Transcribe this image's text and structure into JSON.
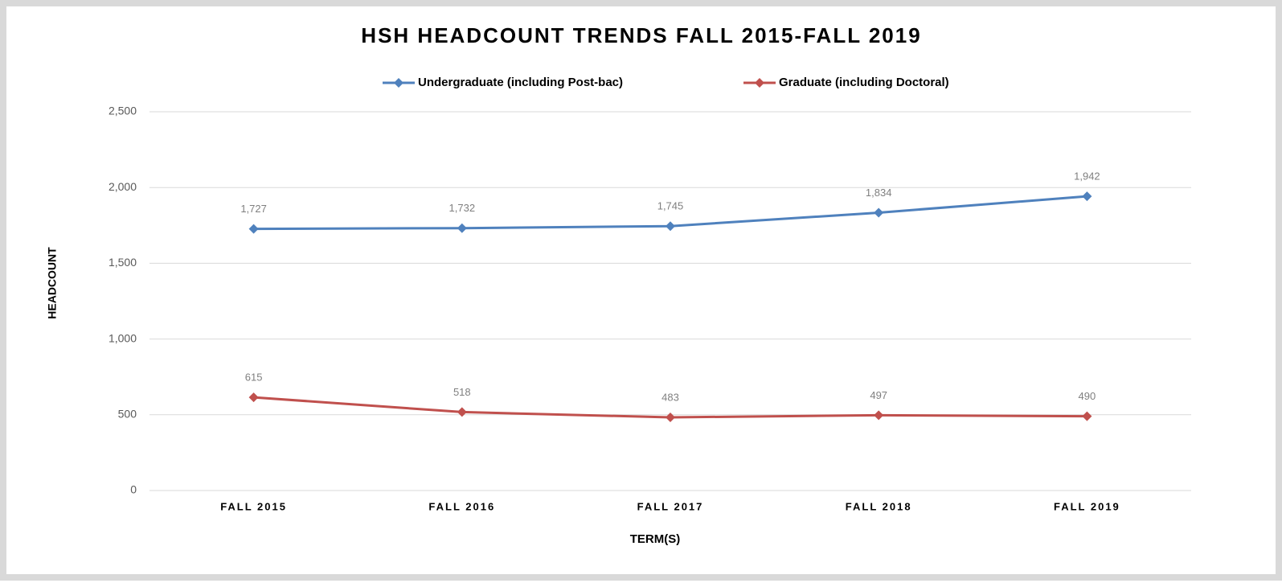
{
  "chart_data": {
    "type": "line",
    "title": "HSH HEADCOUNT TRENDS FALL 2015-FALL 2019",
    "x_label": "TERM(S)",
    "y_label": "HEADCOUNT",
    "categories": [
      "FALL 2015",
      "FALL 2016",
      "FALL 2017",
      "FALL 2018",
      "FALL 2019"
    ],
    "series": [
      {
        "name": "Undergraduate (including Post-bac)",
        "color": "#4f81bd",
        "values": [
          1727,
          1732,
          1745,
          1834,
          1942
        ],
        "value_labels": [
          "1,727",
          "1,732",
          "1,745",
          "1,834",
          "1,942"
        ]
      },
      {
        "name": "Graduate (including Doctoral)",
        "color": "#c0504d",
        "values": [
          615,
          518,
          483,
          497,
          490
        ]
      }
    ],
    "ylim": [
      0,
      2500
    ],
    "yticks": [
      0,
      500,
      {
        "value": 1000,
        "label": "1,000"
      },
      {
        "value": 1500,
        "label": "1,500"
      },
      {
        "value": 2000,
        "label": "2,000"
      },
      {
        "value": 2500,
        "label": "2,500"
      }
    ],
    "grid": true,
    "legend": "top"
  }
}
